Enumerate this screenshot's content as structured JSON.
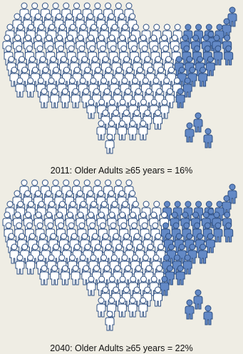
{
  "maps": [
    {
      "caption": "2011: Older Adults ≥65 years = 16%",
      "year": 2011,
      "percent_older_adults": 16
    },
    {
      "caption": "2040: Older Adults ≥65 years = 22%",
      "year": 2040,
      "percent_older_adults": 22
    }
  ],
  "colors": {
    "background": "#efede4",
    "person_outline": "#2e4f82",
    "person_fill_default": "#ffffff",
    "person_fill_older_adult": "#6389c6"
  },
  "icon": "person-icon"
}
